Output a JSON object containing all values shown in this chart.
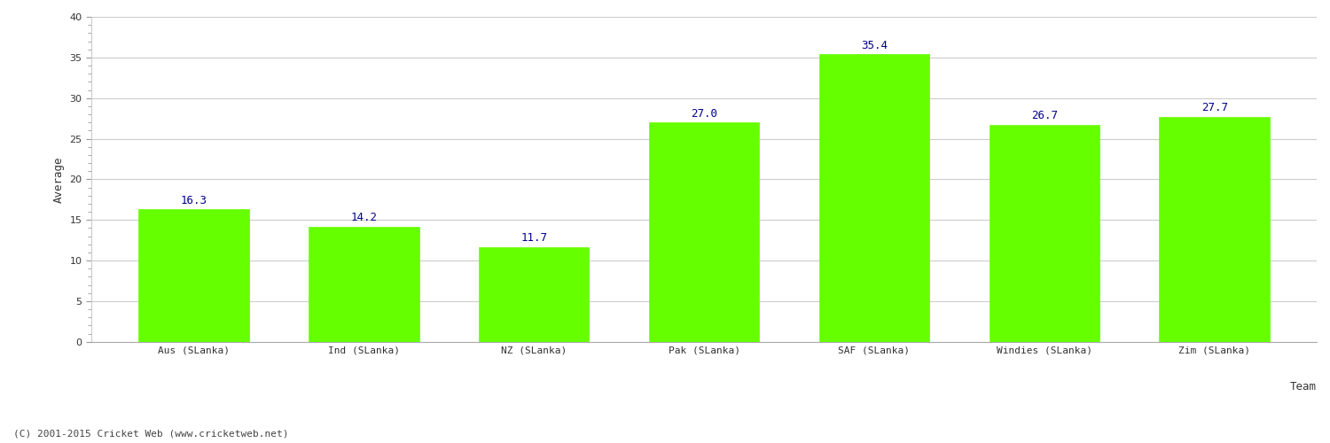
{
  "categories": [
    "Aus (SLanka)",
    "Ind (SLanka)",
    "NZ (SLanka)",
    "Pak (SLanka)",
    "SAF (SLanka)",
    "Windies (SLanka)",
    "Zim (SLanka)"
  ],
  "values": [
    16.3,
    14.2,
    11.7,
    27.0,
    35.4,
    26.7,
    27.7
  ],
  "bar_color": "#66ff00",
  "bar_edge_color": "#66ff00",
  "label_color": "#00008B",
  "ylabel": "Average",
  "xlabel": "Team",
  "ylim": [
    0,
    40
  ],
  "yticks": [
    0,
    5,
    10,
    15,
    20,
    25,
    30,
    35,
    40
  ],
  "title": "",
  "footnote": "(C) 2001-2015 Cricket Web (www.cricketweb.net)",
  "footnote_color": "#444444",
  "grid_color": "#cccccc",
  "background_color": "#ffffff",
  "label_fontsize": 9,
  "axis_label_fontsize": 9,
  "tick_fontsize": 8,
  "footnote_fontsize": 8
}
